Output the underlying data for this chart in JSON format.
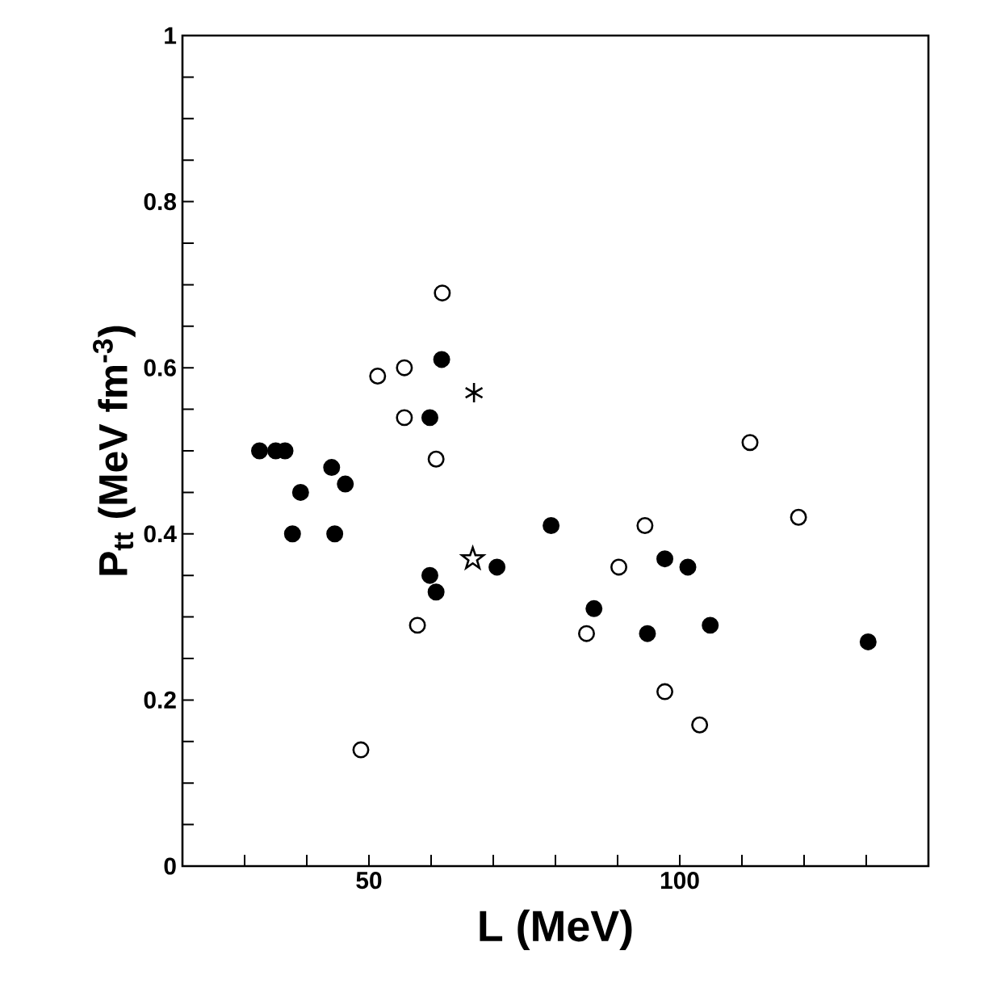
{
  "chart_data": {
    "type": "scatter",
    "xlabel": "L (MeV)",
    "ylabel": "P$_{tt}$ (MeV fm$^{-3}$)",
    "xlim": [
      20,
      140
    ],
    "ylim": [
      0,
      1
    ],
    "xticks": [
      {
        "value": 30,
        "label": null
      },
      {
        "value": 40,
        "label": null
      },
      50,
      {
        "value": 60,
        "label": null
      },
      {
        "value": 70,
        "label": null
      },
      {
        "value": 80,
        "label": null
      },
      {
        "value": 90,
        "label": null
      },
      100,
      {
        "value": 110,
        "label": null
      },
      {
        "value": 120,
        "label": null
      },
      {
        "value": 130,
        "label": null
      }
    ],
    "yticks": [
      0,
      {
        "value": 0.05,
        "label": null
      },
      {
        "value": 0.1,
        "label": null
      },
      {
        "value": 0.15,
        "label": null
      },
      0.2,
      {
        "value": 0.25,
        "label": null
      },
      {
        "value": 0.3,
        "label": null
      },
      {
        "value": 0.35,
        "label": null
      },
      0.4,
      {
        "value": 0.45,
        "label": null
      },
      {
        "value": 0.5,
        "label": null
      },
      {
        "value": 0.55,
        "label": null
      },
      0.6,
      {
        "value": 0.65,
        "label": null
      },
      {
        "value": 0.7,
        "label": null
      },
      {
        "value": 0.75,
        "label": null
      },
      0.8,
      {
        "value": 0.85,
        "label": null
      },
      {
        "value": 0.9,
        "label": null
      },
      {
        "value": 0.95,
        "label": null
      },
      1
    ],
    "series": [
      {
        "color": "#000000",
        "marker": "circle",
        "x": [
          32.4,
          35.0,
          36.5,
          39.0,
          37.7,
          44.0,
          46.2,
          44.5,
          61.7,
          59.8,
          59.8,
          60.8,
          70.6,
          79.3,
          86.2,
          94.8,
          97.6,
          101.3,
          104.9,
          130.3
        ],
        "values": [
          0.5,
          0.5,
          0.5,
          0.45,
          0.4,
          0.48,
          0.46,
          0.4,
          0.61,
          0.54,
          0.35,
          0.33,
          0.36,
          0.41,
          0.31,
          0.28,
          0.37,
          0.36,
          0.29,
          0.27
        ]
      },
      {
        "color": "#ffffff",
        "marker": "circle",
        "x": [
          61.8,
          55.7,
          51.4,
          55.7,
          60.8,
          57.8,
          48.7,
          111.3,
          119.1,
          94.4,
          90.2,
          85.0,
          97.6,
          103.2
        ],
        "values": [
          0.69,
          0.6,
          0.59,
          0.54,
          0.49,
          0.29,
          0.14,
          0.51,
          0.42,
          0.41,
          0.36,
          0.28,
          0.21,
          0.17
        ]
      },
      {
        "color": "#000000",
        "marker": "cross",
        "x": [
          66.9
        ],
        "values": [
          0.57
        ]
      },
      {
        "color": "#ffffff",
        "marker": "star",
        "x": [
          66.7
        ],
        "values": [
          0.37
        ]
      }
    ]
  }
}
